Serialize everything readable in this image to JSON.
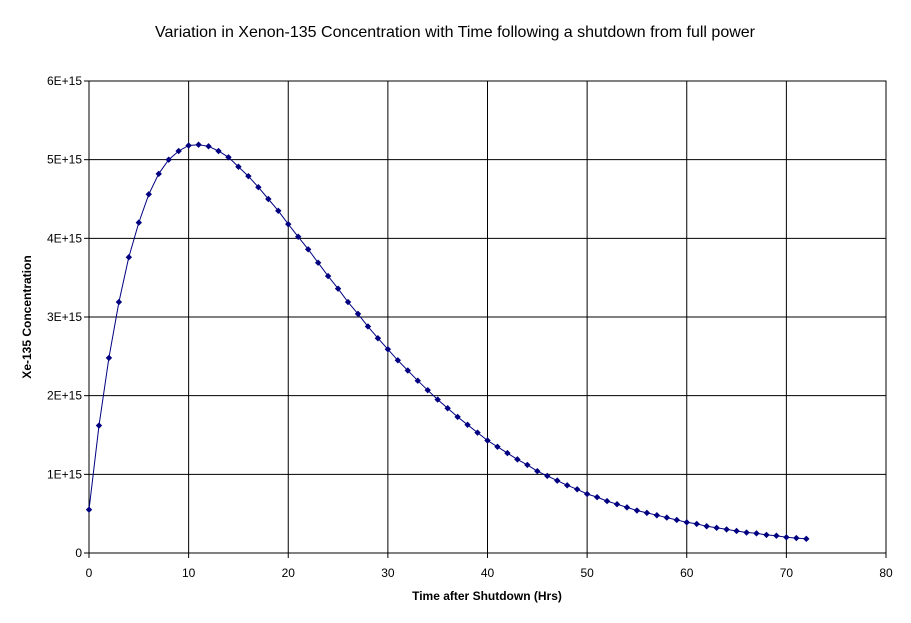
{
  "chart_data": {
    "type": "line",
    "title": "Variation in Xenon-135 Concentration with Time following a shutdown from full power",
    "xlabel": "Time after Shutdown (Hrs)",
    "ylabel": "Xe-135 Concentration",
    "xlim": [
      0,
      80
    ],
    "ylim": [
      0,
      6000000000000000.0
    ],
    "xticks": [
      "0",
      "10",
      "20",
      "30",
      "40",
      "50",
      "60",
      "70",
      "80"
    ],
    "yticks": [
      "0",
      "1E+15",
      "2E+15",
      "3E+15",
      "4E+15",
      "5E+15",
      "6E+15"
    ],
    "grid": true,
    "legend": "none",
    "series_color": "#000080",
    "series": [
      {
        "x": [
          0,
          1,
          2,
          3,
          4,
          5,
          6,
          7,
          8,
          9,
          10,
          11,
          12,
          13,
          14,
          15,
          16,
          17,
          18,
          19,
          20,
          21,
          22,
          23,
          24,
          25,
          26,
          27,
          28,
          29,
          30,
          31,
          32,
          33,
          34,
          35,
          36,
          37,
          38,
          39,
          40,
          41,
          42,
          43,
          44,
          45,
          46,
          47,
          48,
          49,
          50,
          51,
          52,
          53,
          54,
          55,
          56,
          57,
          58,
          59,
          60,
          61,
          62,
          63,
          64,
          65,
          66,
          67,
          68,
          69,
          70,
          71,
          72
        ],
        "values": [
          550000000000000.0,
          1620000000000000.0,
          2480000000000000.0,
          3190000000000000.0,
          3760000000000000.0,
          4200000000000000.0,
          4560000000000000.0,
          4820000000000000.0,
          5000000000000000.0,
          5110000000000000.0,
          5180000000000000.0,
          5190000000000000.0,
          5170000000000000.0,
          5110000000000000.0,
          5030000000000000.0,
          4910000000000000.0,
          4790000000000000.0,
          4650000000000000.0,
          4500000000000000.0,
          4350000000000000.0,
          4180000000000000.0,
          4020000000000000.0,
          3860000000000000.0,
          3690000000000000.0,
          3520000000000000.0,
          3360000000000000.0,
          3190000000000000.0,
          3040000000000000.0,
          2880000000000000.0,
          2730000000000000.0,
          2590000000000000.0,
          2450000000000000.0,
          2320000000000000.0,
          2190000000000000.0,
          2070000000000000.0,
          1950000000000000.0,
          1840000000000000.0,
          1730000000000000.0,
          1630000000000000.0,
          1530000000000000.0,
          1430000000000000.0,
          1350000000000000.0,
          1270000000000000.0,
          1190000000000000.0,
          1120000000000000.0,
          1040000000000000.0,
          980000000000000.0,
          920000000000000.0,
          860000000000000.0,
          810000000000000.0,
          750000000000000.0,
          710000000000000.0,
          660000000000000.0,
          620000000000000.0,
          580000000000000.0,
          540000000000000.0,
          510000000000000.0,
          480000000000000.0,
          450000000000000.0,
          420000000000000.0,
          390000000000000.0,
          370000000000000.0,
          340000000000000.0,
          320000000000000.0,
          300000000000000.0,
          280000000000000.0,
          260000000000000.0,
          250000000000000.0,
          230000000000000.0,
          220000000000000.0,
          200000000000000.0,
          190000000000000.0,
          180000000000000.0
        ]
      }
    ]
  }
}
